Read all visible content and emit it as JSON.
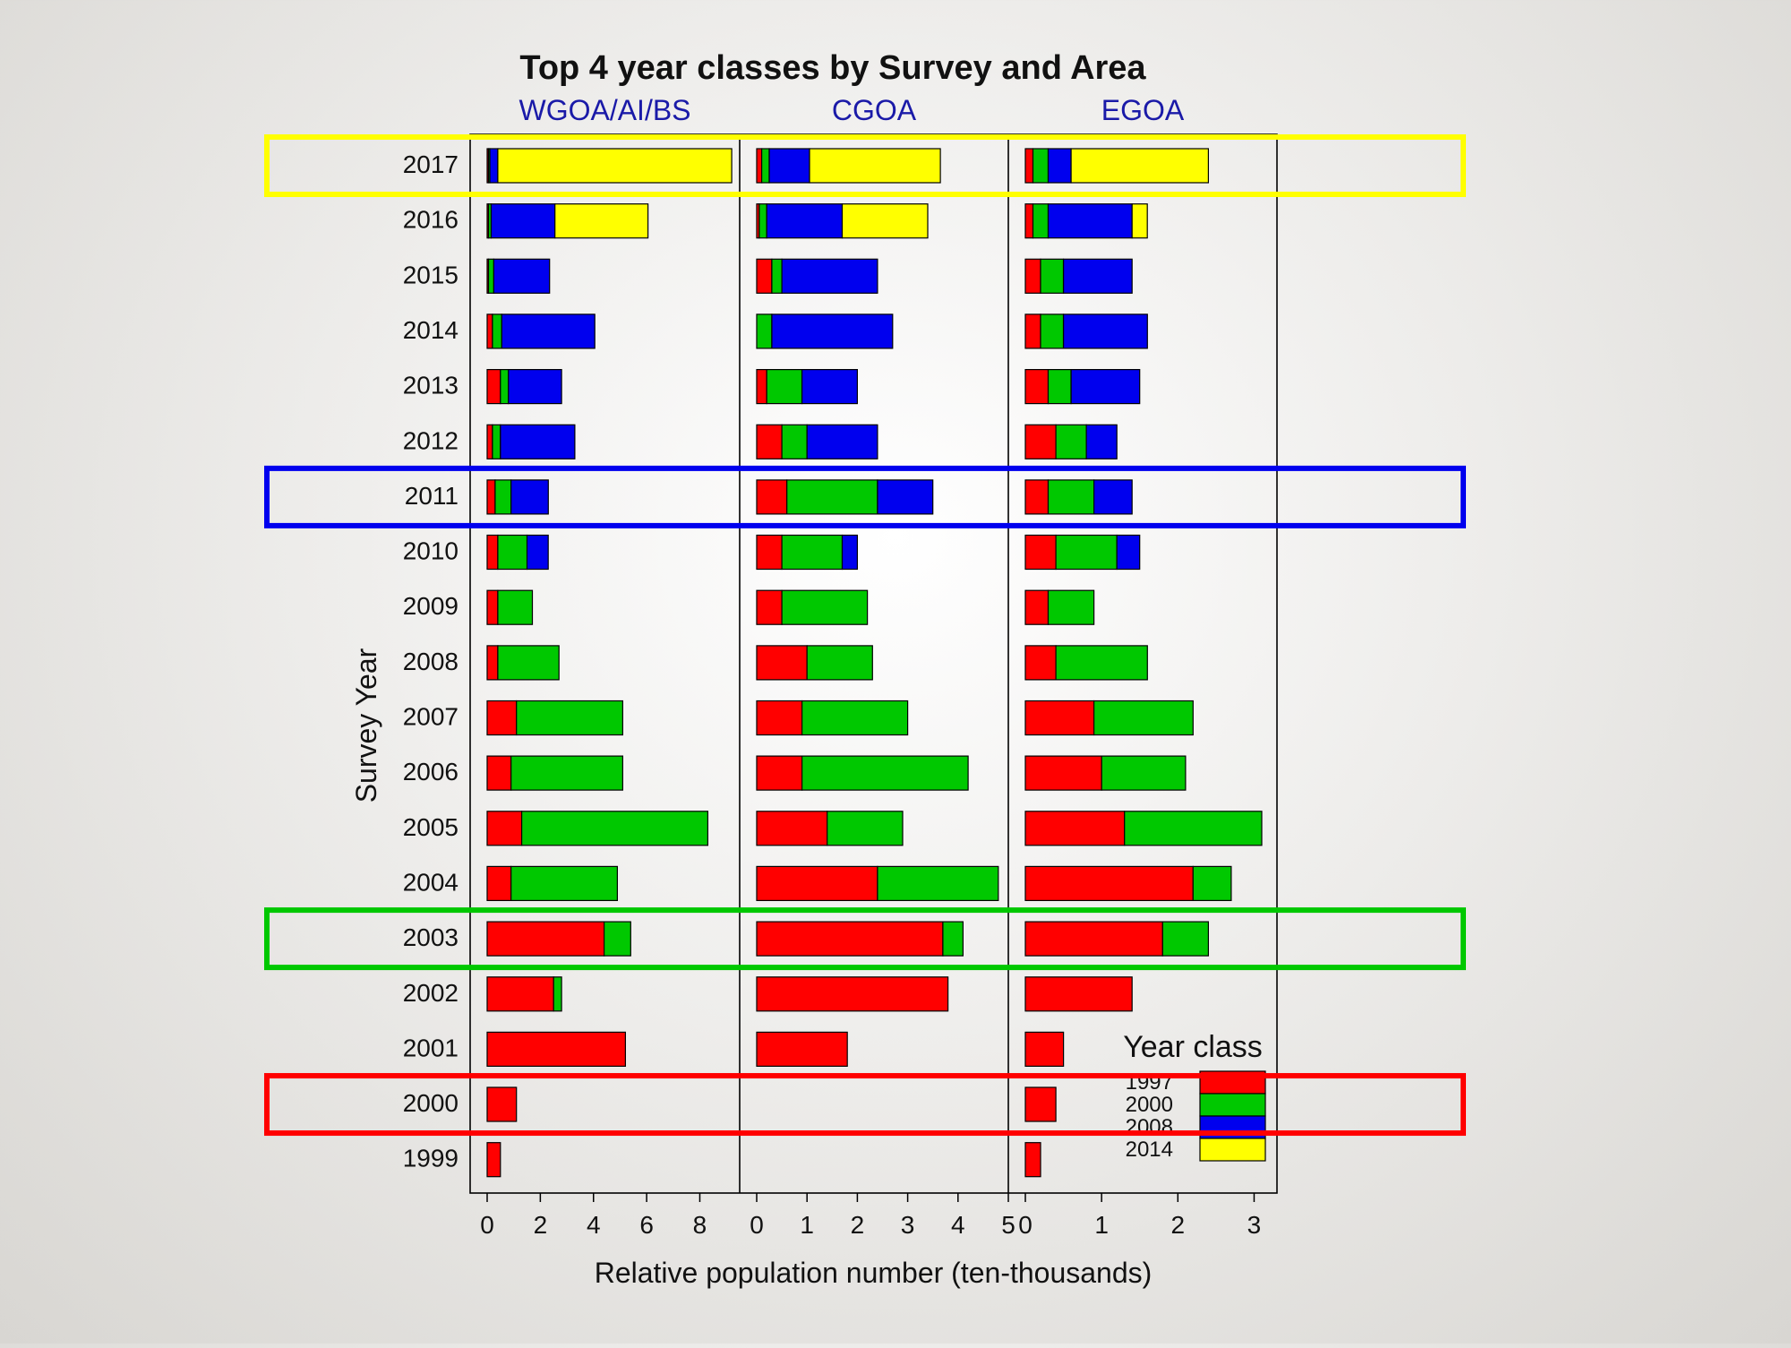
{
  "chart_data": {
    "type": "bar",
    "stacked": true,
    "orientation": "horizontal",
    "title": "Top 4 year classes by Survey and Area",
    "ylabel": "Survey Year",
    "xlabel": "Relative population number (ten-thousands)",
    "legend": {
      "title": "Year class",
      "position": "bottom-right",
      "entries": [
        "1997",
        "2000",
        "2008",
        "2014"
      ],
      "colors": {
        "1997": "#ff0000",
        "2000": "#00c800",
        "2008": "#0000ee",
        "2014": "#ffff00"
      }
    },
    "categories": [
      "2017",
      "2016",
      "2015",
      "2014",
      "2013",
      "2012",
      "2011",
      "2010",
      "2009",
      "2008",
      "2007",
      "2006",
      "2005",
      "2004",
      "2003",
      "2002",
      "2001",
      "2000",
      "1999"
    ],
    "panels": [
      {
        "name": "WGOA/AI/BS",
        "xlim": [
          0,
          9.5
        ],
        "ticks": [
          "0",
          "2",
          "4",
          "6",
          "8"
        ],
        "series": [
          {
            "name": "1997",
            "values": [
              0.05,
              0.05,
              0.05,
              0.2,
              0.5,
              0.2,
              0.3,
              0.4,
              0.4,
              0.4,
              1.1,
              0.9,
              1.3,
              0.9,
              4.4,
              2.5,
              5.2,
              1.1,
              0.5
            ]
          },
          {
            "name": "2000",
            "values": [
              0.05,
              0.1,
              0.2,
              0.35,
              0.3,
              0.3,
              0.6,
              1.1,
              1.3,
              2.3,
              4.0,
              4.2,
              7.0,
              4.0,
              1.0,
              0.3,
              0,
              0,
              0
            ]
          },
          {
            "name": "2008",
            "values": [
              0.3,
              2.4,
              2.1,
              3.5,
              2.0,
              2.8,
              1.4,
              0.8,
              0,
              0,
              0,
              0,
              0,
              0,
              0,
              0,
              0,
              0,
              0
            ]
          },
          {
            "name": "2014",
            "values": [
              8.8,
              3.5,
              0,
              0,
              0,
              0,
              0,
              0,
              0,
              0,
              0,
              0,
              0,
              0,
              0,
              0,
              0,
              0,
              0
            ]
          }
        ]
      },
      {
        "name": "CGOA",
        "xlim": [
          0,
          5.0
        ],
        "ticks": [
          "0",
          "1",
          "2",
          "3",
          "4",
          "5"
        ],
        "series": [
          {
            "name": "1997",
            "values": [
              0.1,
              0.05,
              0.3,
              0.0,
              0.2,
              0.5,
              0.6,
              0.5,
              0.5,
              1.0,
              0.9,
              0.9,
              1.4,
              2.4,
              3.7,
              3.8,
              1.8,
              0,
              0
            ]
          },
          {
            "name": "2000",
            "values": [
              0.15,
              0.15,
              0.2,
              0.3,
              0.7,
              0.5,
              1.8,
              1.2,
              1.7,
              1.3,
              2.1,
              3.3,
              1.5,
              2.4,
              0.4,
              0,
              0,
              0,
              0
            ]
          },
          {
            "name": "2008",
            "values": [
              0.8,
              1.5,
              1.9,
              2.4,
              1.1,
              1.4,
              1.1,
              0.3,
              0,
              0,
              0,
              0,
              0,
              0,
              0,
              0,
              0,
              0,
              0
            ]
          },
          {
            "name": "2014",
            "values": [
              2.6,
              1.7,
              0,
              0,
              0,
              0,
              0,
              0,
              0,
              0,
              0,
              0,
              0,
              0,
              0,
              0,
              0,
              0,
              0
            ]
          }
        ]
      },
      {
        "name": "EGOA",
        "xlim": [
          0,
          3.3
        ],
        "ticks": [
          "0",
          "1",
          "2",
          "3"
        ],
        "series": [
          {
            "name": "1997",
            "values": [
              0.1,
              0.1,
              0.2,
              0.2,
              0.3,
              0.4,
              0.3,
              0.4,
              0.3,
              0.4,
              0.9,
              1.0,
              1.3,
              2.2,
              1.8,
              1.4,
              0.5,
              0.4,
              0.2
            ]
          },
          {
            "name": "2000",
            "values": [
              0.2,
              0.2,
              0.3,
              0.3,
              0.3,
              0.4,
              0.6,
              0.8,
              0.6,
              1.2,
              1.3,
              1.1,
              1.8,
              0.5,
              0.6,
              0,
              0,
              0,
              0
            ]
          },
          {
            "name": "2008",
            "values": [
              0.3,
              1.1,
              0.9,
              1.1,
              0.9,
              0.4,
              0.5,
              0.3,
              0,
              0,
              0,
              0,
              0,
              0,
              0,
              0,
              0,
              0,
              0
            ]
          },
          {
            "name": "2014",
            "values": [
              1.8,
              0.2,
              0,
              0,
              0,
              0,
              0,
              0,
              0,
              0,
              0,
              0,
              0,
              0,
              0,
              0,
              0,
              0,
              0
            ]
          }
        ]
      }
    ],
    "highlights": [
      {
        "row": "2017",
        "color": "#ffff00"
      },
      {
        "row": "2011",
        "color": "#0000ee"
      },
      {
        "row": "2003",
        "color": "#00c800"
      },
      {
        "row": "2000",
        "color": "#ff0000"
      }
    ]
  }
}
